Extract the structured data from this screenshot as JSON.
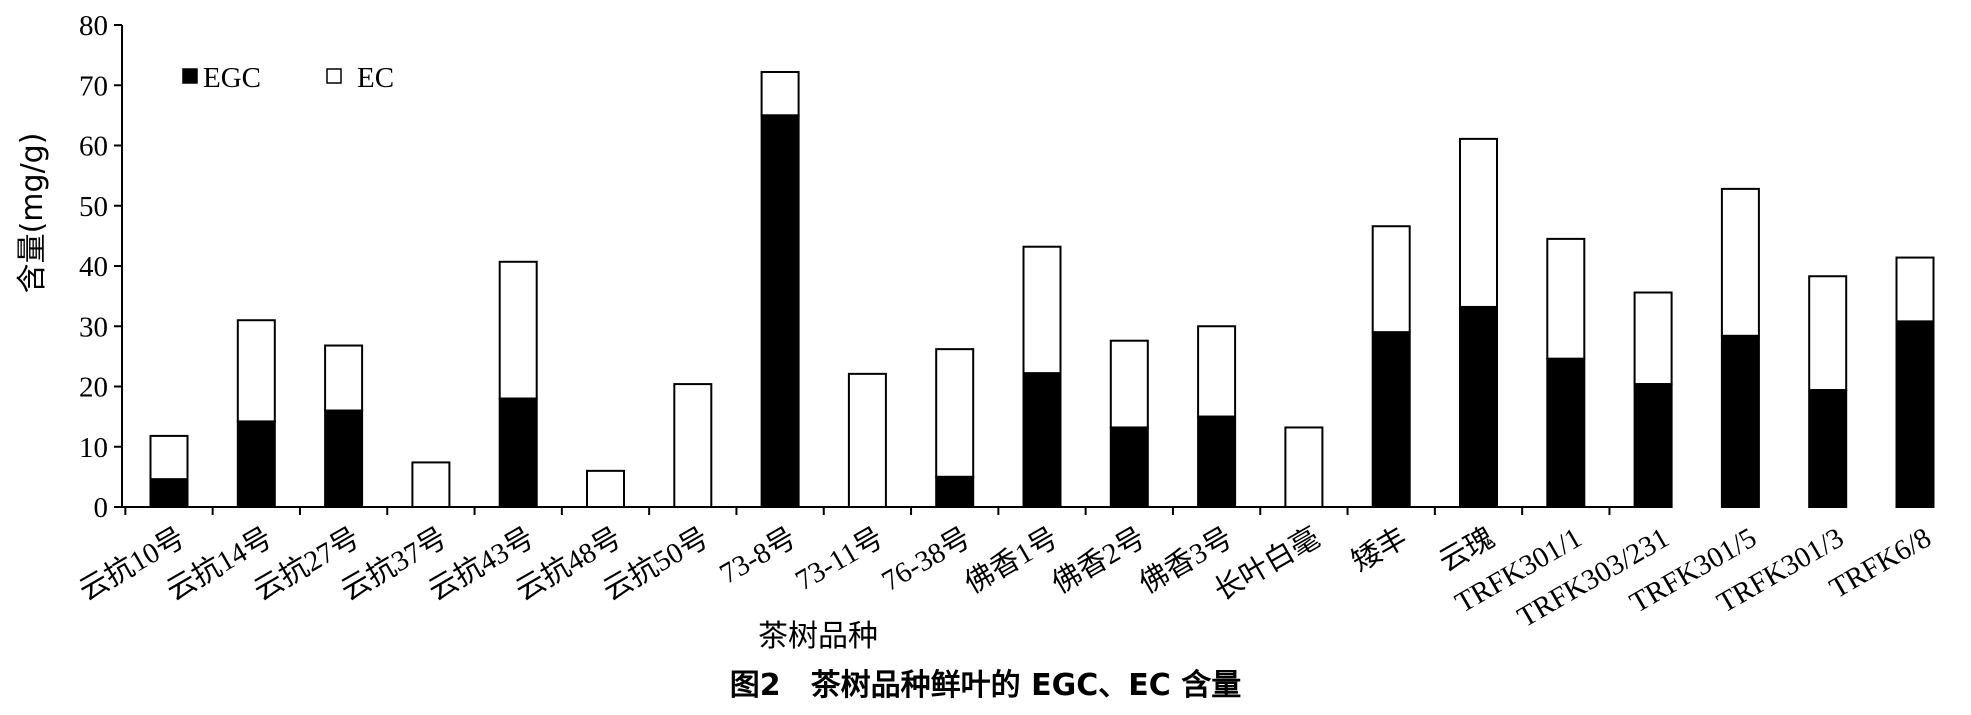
{
  "caption": "图2　茶树品种鲜叶的 EGC、EC 含量",
  "chart_data": {
    "type": "bar",
    "stacked": true,
    "xlabel": "茶树品种",
    "ylabel": "含量(mg/g)",
    "ylim": [
      0,
      80
    ],
    "yticks": [
      0,
      10,
      20,
      30,
      40,
      50,
      60,
      70,
      80
    ],
    "grid": false,
    "legend_position": "top-left",
    "categories": [
      "云抗10号",
      "云抗14号",
      "云抗27号",
      "云抗37号",
      "云抗43号",
      "云抗48号",
      "云抗50号",
      "73-8号",
      "73-11号",
      "76-38号",
      "佛香1号",
      "佛香2号",
      "佛香3号",
      "长叶白毫",
      "矮丰",
      "云瑰",
      "TRFK301/1",
      "TRFK303/231",
      "TRFK301/5",
      "TRFK301/3",
      "TRFK6/8"
    ],
    "series": [
      {
        "name": "EGC",
        "color": "#000000",
        "values": [
          4.6,
          14.2,
          16.0,
          0,
          18.0,
          0,
          0,
          65.0,
          0,
          5.0,
          22.2,
          13.2,
          15.0,
          0,
          29.0,
          33.2,
          24.6,
          20.4,
          28.4,
          19.4,
          30.8
        ]
      },
      {
        "name": "EC",
        "color": "#ffffff",
        "values": [
          7.2,
          16.8,
          10.8,
          7.4,
          22.7,
          6.0,
          20.4,
          7.2,
          22.1,
          21.2,
          21.0,
          14.4,
          15.0,
          13.2,
          17.6,
          27.9,
          19.9,
          15.2,
          24.4,
          18.9,
          10.6
        ]
      }
    ]
  }
}
